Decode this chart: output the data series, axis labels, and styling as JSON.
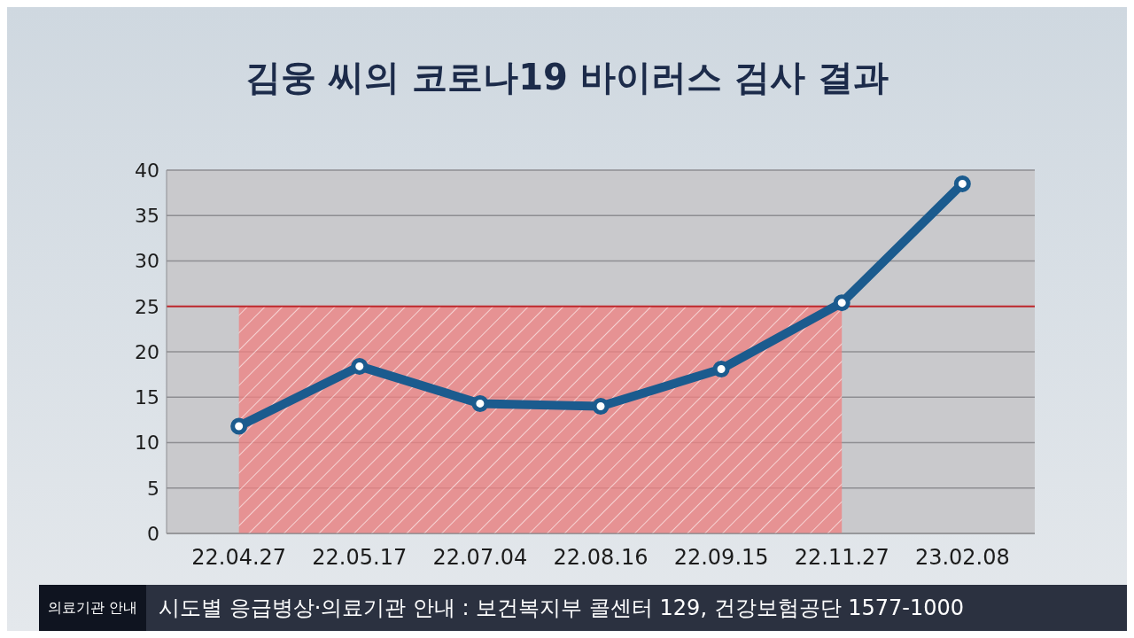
{
  "chart_data": {
    "type": "line",
    "title": "김웅 씨의 코로나19 바이러스 검사 결과",
    "categories": [
      "22.04.27",
      "22.05.17",
      "22.07.04",
      "22.08.16",
      "22.09.15",
      "22.11.27",
      "23.02.08"
    ],
    "series": [
      {
        "color": "#1b5b8e",
        "values": [
          11.8,
          18.4,
          14.3,
          14.0,
          18.1,
          25.4,
          38.5
        ]
      }
    ],
    "ylim": [
      0,
      40
    ],
    "yticks": [
      0,
      5,
      10,
      15,
      20,
      25,
      30,
      35,
      40
    ],
    "grid": "y",
    "marker": "circle",
    "legend": false,
    "ref_lines": [
      {
        "axis": "y",
        "value": 25,
        "color": "#c0282d"
      }
    ],
    "bands": [
      {
        "axis": "x",
        "from": "22.04.27",
        "to": "22.11.27",
        "color": "#f08080"
      }
    ],
    "annotations": [
      "의료기관 안내",
      "시도별 응급병상·의료기관 안내 : 보건복지부 콜센터 129, 건강보험공단 1577-1000"
    ]
  }
}
